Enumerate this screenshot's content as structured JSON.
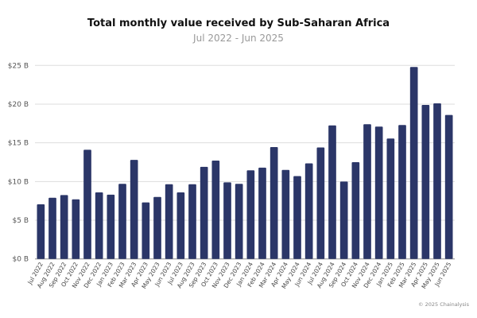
{
  "chart_data": {
    "type": "bar",
    "title": "Total monthly value received by Sub-Saharan Africa",
    "subtitle": "Jul 2022 - Jun 2025",
    "xlabel": "",
    "ylabel": "",
    "unit": "USD billions",
    "ylim": [
      0,
      25
    ],
    "yticks": [
      0,
      5,
      10,
      15,
      20,
      25
    ],
    "ytick_labels": [
      "$0 B",
      "$5 B",
      "$10 B",
      "$15 B",
      "$20 B",
      "$25 B"
    ],
    "grid": true,
    "bar_color": "#2b3668",
    "categories": [
      "Jul 2022",
      "Aug 2022",
      "Sep 2022",
      "Oct 2022",
      "Nov 2022",
      "Dec 2022",
      "Jan 2023",
      "Feb 2023",
      "Mar 2023",
      "Apr 2023",
      "May 2023",
      "Jun 2023",
      "Jul 2023",
      "Aug 2023",
      "Sep 2023",
      "Oct 2023",
      "Nov 2023",
      "Dec 2023",
      "Jan 2024",
      "Feb 2024",
      "Mar 2024",
      "Apr 2024",
      "May 2024",
      "Jun 2024",
      "Jul 2024",
      "Aug 2024",
      "Sep 2024",
      "Oct 2024",
      "Nov 2024",
      "Dec 2024",
      "Jan 2025",
      "Feb 2025",
      "Mar 2025",
      "Apr 2025",
      "May 2025",
      "Jun 2025"
    ],
    "values": [
      7.05,
      7.9,
      8.25,
      7.7,
      14.1,
      8.6,
      8.3,
      9.7,
      12.8,
      7.3,
      8.0,
      9.65,
      8.6,
      9.65,
      11.9,
      12.7,
      9.9,
      9.7,
      11.45,
      11.8,
      14.45,
      11.5,
      10.7,
      12.35,
      14.4,
      17.25,
      10.0,
      12.5,
      17.4,
      17.1,
      15.55,
      17.3,
      24.8,
      19.9,
      20.1,
      18.6
    ]
  },
  "footer": "© 2025 Chainalysis"
}
